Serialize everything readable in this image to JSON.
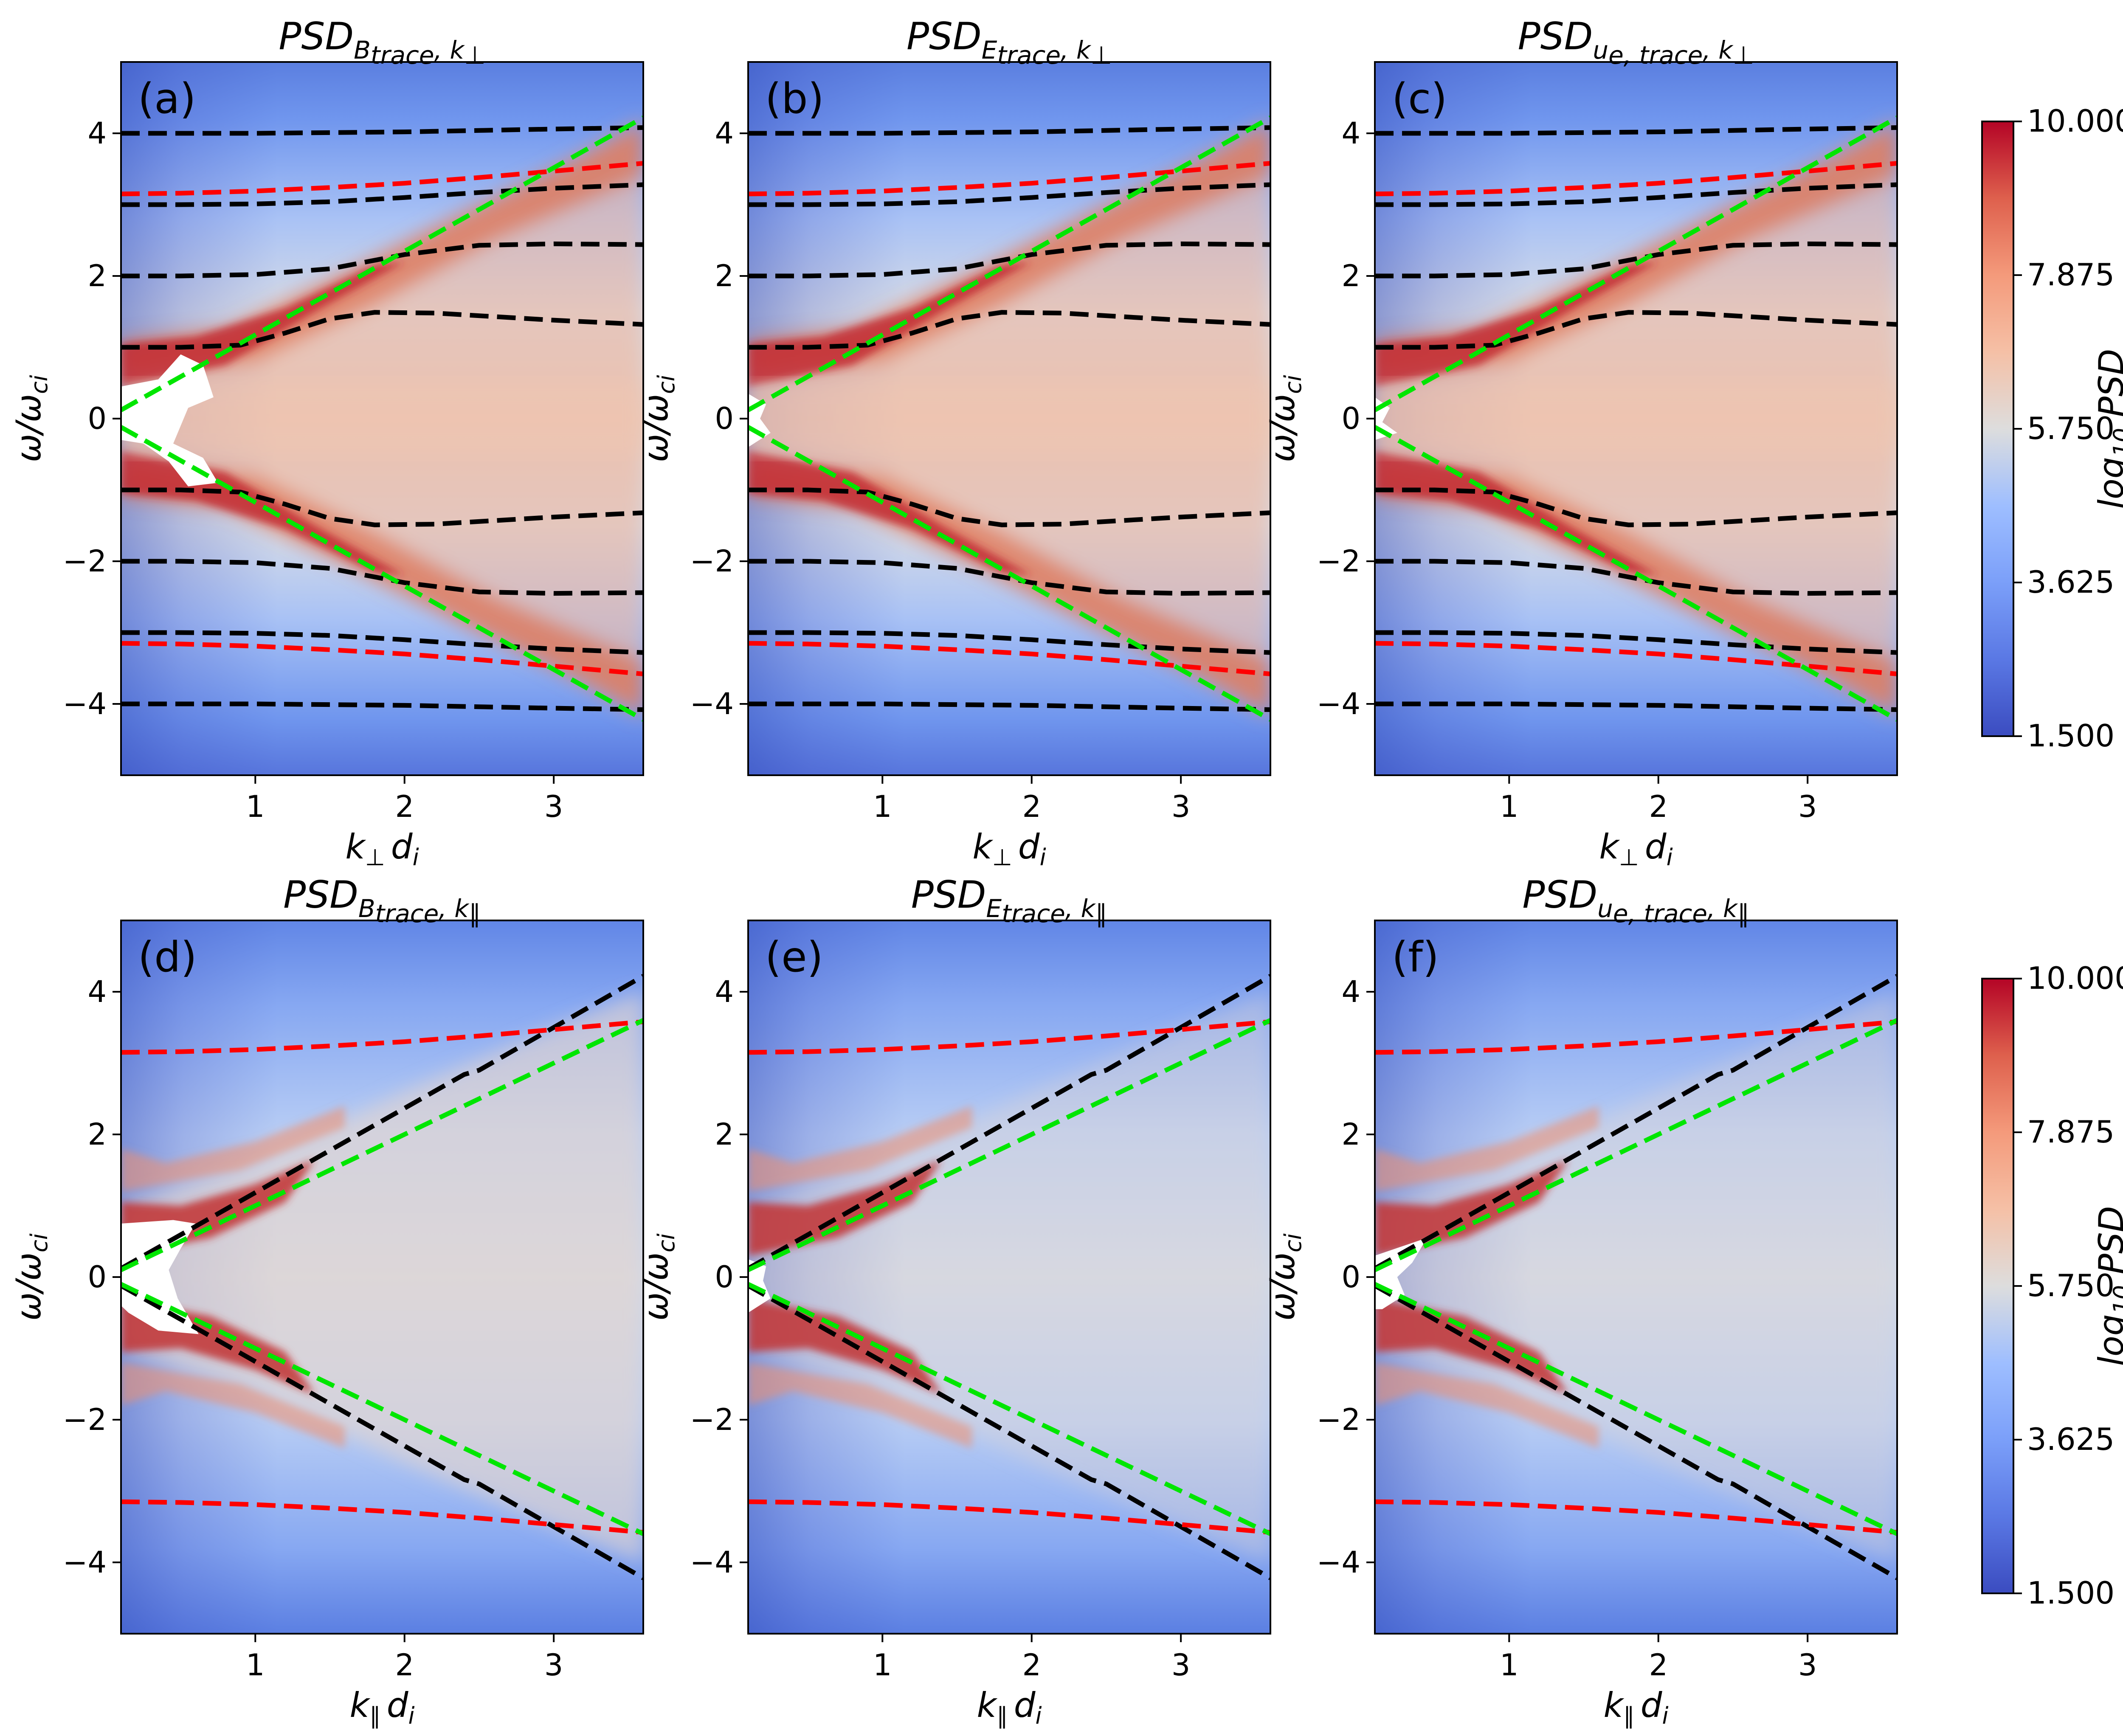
{
  "chart_data": [
    {
      "type": "heatmap",
      "panel": "(a)",
      "title": {
        "main": "PSD",
        "sub": "B",
        "sub2": "trace",
        "sub3": ", k",
        "sub4": "⊥"
      },
      "xlabel": {
        "main": "k",
        "sub": "⊥",
        "tail": "d",
        "tail_sub": "i"
      },
      "ylabel": {
        "main": "ω/ω",
        "sub": "ci"
      },
      "xlim": [
        0.1,
        3.6
      ],
      "ylim": [
        -5,
        5
      ],
      "xticks": [
        1,
        2,
        3
      ],
      "yticks": [
        -4,
        -2,
        0,
        2,
        4
      ],
      "yticklabels": [
        "−4",
        "−2",
        "0",
        "2",
        "4"
      ],
      "colormap": "coolwarm",
      "overlays": "perp",
      "hole": "a"
    },
    {
      "type": "heatmap",
      "panel": "(b)",
      "title": {
        "main": "PSD",
        "sub": "E",
        "sub2": "trace",
        "sub3": ", k",
        "sub4": "⊥"
      },
      "xlabel": {
        "main": "k",
        "sub": "⊥",
        "tail": "d",
        "tail_sub": "i"
      },
      "ylabel": {
        "main": "ω/ω",
        "sub": "ci"
      },
      "xlim": [
        0.1,
        3.6
      ],
      "ylim": [
        -5,
        5
      ],
      "xticks": [
        1,
        2,
        3
      ],
      "yticks": [
        -4,
        -2,
        0,
        2,
        4
      ],
      "yticklabels": [
        "−4",
        "−2",
        "0",
        "2",
        "4"
      ],
      "colormap": "coolwarm",
      "overlays": "perp",
      "hole": "b"
    },
    {
      "type": "heatmap",
      "panel": "(c)",
      "title": {
        "main": "PSD",
        "sub": "u",
        "sub2": "e, trace",
        "sub3": ", k",
        "sub4": "⊥"
      },
      "xlabel": {
        "main": "k",
        "sub": "⊥",
        "tail": "d",
        "tail_sub": "i"
      },
      "ylabel": {
        "main": "ω/ω",
        "sub": "ci"
      },
      "xlim": [
        0.1,
        3.6
      ],
      "ylim": [
        -5,
        5
      ],
      "xticks": [
        1,
        2,
        3
      ],
      "yticks": [
        -4,
        -2,
        0,
        2,
        4
      ],
      "yticklabels": [
        "−4",
        "−2",
        "0",
        "2",
        "4"
      ],
      "colormap": "coolwarm",
      "overlays": "perp",
      "hole": "c"
    },
    {
      "type": "heatmap",
      "panel": "(d)",
      "title": {
        "main": "PSD",
        "sub": "B",
        "sub2": "trace",
        "sub3": ", k",
        "sub4": "∥"
      },
      "xlabel": {
        "main": "k",
        "sub": "∥",
        "tail": "d",
        "tail_sub": "i"
      },
      "ylabel": {
        "main": "ω/ω",
        "sub": "ci"
      },
      "xlim": [
        0.1,
        3.6
      ],
      "ylim": [
        -5,
        5
      ],
      "xticks": [
        1,
        2,
        3
      ],
      "yticks": [
        -4,
        -2,
        0,
        2,
        4
      ],
      "yticklabels": [
        "−4",
        "−2",
        "0",
        "2",
        "4"
      ],
      "colormap": "coolwarm",
      "overlays": "par",
      "hole": "d"
    },
    {
      "type": "heatmap",
      "panel": "(e)",
      "title": {
        "main": "PSD",
        "sub": "E",
        "sub2": "trace",
        "sub3": ", k",
        "sub4": "∥"
      },
      "xlabel": {
        "main": "k",
        "sub": "∥",
        "tail": "d",
        "tail_sub": "i"
      },
      "ylabel": {
        "main": "ω/ω",
        "sub": "ci"
      },
      "xlim": [
        0.1,
        3.6
      ],
      "ylim": [
        -5,
        5
      ],
      "xticks": [
        1,
        2,
        3
      ],
      "yticks": [
        -4,
        -2,
        0,
        2,
        4
      ],
      "yticklabels": [
        "−4",
        "−2",
        "0",
        "2",
        "4"
      ],
      "colormap": "coolwarm",
      "overlays": "par",
      "hole": "e"
    },
    {
      "type": "heatmap",
      "panel": "(f)",
      "title": {
        "main": "PSD",
        "sub": "u",
        "sub2": "e, trace",
        "sub3": ", k",
        "sub4": "∥"
      },
      "xlabel": {
        "main": "k",
        "sub": "∥",
        "tail": "d",
        "tail_sub": "i"
      },
      "ylabel": {
        "main": "ω/ω",
        "sub": "ci"
      },
      "xlim": [
        0.1,
        3.6
      ],
      "ylim": [
        -5,
        5
      ],
      "xticks": [
        1,
        2,
        3
      ],
      "yticks": [
        -4,
        -2,
        0,
        2,
        4
      ],
      "yticklabels": [
        "−4",
        "−2",
        "0",
        "2",
        "4"
      ],
      "colormap": "coolwarm",
      "overlays": "par",
      "hole": "f"
    }
  ],
  "colorbar": {
    "label": {
      "main": "log",
      "sub": "10",
      "tail": " PSD"
    },
    "ticks": [
      "10.000",
      "7.875",
      "5.750",
      "3.625",
      "1.500"
    ],
    "range": [
      1.5,
      10.0
    ]
  },
  "overlay_curves": {
    "perp": {
      "black": [
        {
          "x": [
            0.1,
            0.5,
            1.0,
            1.5,
            2.0,
            2.5,
            3.0,
            3.6
          ],
          "y": [
            4.0,
            4.0,
            4.0,
            4.01,
            4.02,
            4.04,
            4.06,
            4.08
          ]
        },
        {
          "x": [
            0.1,
            0.5,
            1.0,
            1.5,
            2.0,
            2.5,
            3.0,
            3.6
          ],
          "y": [
            3.0,
            3.0,
            3.01,
            3.04,
            3.1,
            3.17,
            3.23,
            3.28
          ]
        },
        {
          "x": [
            0.1,
            0.5,
            1.0,
            1.5,
            2.0,
            2.5,
            3.0,
            3.6
          ],
          "y": [
            2.0,
            2.0,
            2.02,
            2.1,
            2.3,
            2.43,
            2.45,
            2.44
          ]
        },
        {
          "x": [
            0.1,
            0.5,
            0.9,
            1.2,
            1.5,
            1.8,
            2.2,
            2.6,
            3.0,
            3.6
          ],
          "y": [
            1.0,
            1.0,
            1.03,
            1.2,
            1.4,
            1.49,
            1.48,
            1.43,
            1.38,
            1.32
          ]
        },
        {
          "x": [
            0.1,
            0.5,
            0.9,
            1.2,
            1.5,
            1.8,
            2.2,
            2.6,
            3.0,
            3.6
          ],
          "y": [
            -1.0,
            -1.0,
            -1.03,
            -1.2,
            -1.4,
            -1.49,
            -1.48,
            -1.43,
            -1.38,
            -1.32
          ]
        },
        {
          "x": [
            0.1,
            0.5,
            1.0,
            1.5,
            2.0,
            2.5,
            3.0,
            3.6
          ],
          "y": [
            -2.0,
            -2.0,
            -2.02,
            -2.1,
            -2.3,
            -2.43,
            -2.45,
            -2.44
          ]
        },
        {
          "x": [
            0.1,
            0.5,
            1.0,
            1.5,
            2.0,
            2.5,
            3.0,
            3.6
          ],
          "y": [
            -3.0,
            -3.0,
            -3.01,
            -3.04,
            -3.1,
            -3.17,
            -3.23,
            -3.28
          ]
        },
        {
          "x": [
            0.1,
            0.5,
            1.0,
            1.5,
            2.0,
            2.5,
            3.0,
            3.6
          ],
          "y": [
            -4.0,
            -4.0,
            -4.0,
            -4.01,
            -4.02,
            -4.04,
            -4.06,
            -4.08
          ]
        }
      ],
      "red": [
        {
          "x": [
            0.1,
            0.5,
            1.0,
            1.5,
            2.0,
            2.5,
            3.0,
            3.6
          ],
          "y": [
            3.15,
            3.16,
            3.19,
            3.24,
            3.3,
            3.38,
            3.47,
            3.58
          ]
        },
        {
          "x": [
            0.1,
            0.5,
            1.0,
            1.5,
            2.0,
            2.5,
            3.0,
            3.6
          ],
          "y": [
            -3.15,
            -3.16,
            -3.19,
            -3.24,
            -3.3,
            -3.38,
            -3.47,
            -3.58
          ]
        }
      ],
      "green": [
        {
          "x": [
            0.1,
            3.6
          ],
          "y": [
            0.12,
            4.22
          ]
        },
        {
          "x": [
            0.1,
            3.6
          ],
          "y": [
            -0.12,
            -4.22
          ]
        }
      ]
    },
    "par": {
      "black": [
        {
          "x": [
            0.1,
            2.4,
            2.5,
            3.6
          ],
          "y": [
            0.12,
            2.84,
            2.9,
            4.22
          ]
        },
        {
          "x": [
            0.1,
            2.4,
            2.5,
            3.6
          ],
          "y": [
            -0.12,
            -2.84,
            -2.9,
            -4.22
          ]
        }
      ],
      "red": [
        {
          "x": [
            0.1,
            0.5,
            1.0,
            1.5,
            2.0,
            2.5,
            3.0,
            3.6
          ],
          "y": [
            3.15,
            3.16,
            3.19,
            3.24,
            3.3,
            3.38,
            3.47,
            3.58
          ]
        },
        {
          "x": [
            0.1,
            0.5,
            1.0,
            1.5,
            2.0,
            2.5,
            3.0,
            3.6
          ],
          "y": [
            -3.15,
            -3.16,
            -3.19,
            -3.24,
            -3.3,
            -3.38,
            -3.47,
            -3.58
          ]
        }
      ],
      "green": [
        {
          "x": [
            0.1,
            3.6
          ],
          "y": [
            0.1,
            3.6
          ]
        },
        {
          "x": [
            0.1,
            3.6
          ],
          "y": [
            -0.1,
            -3.6
          ]
        }
      ]
    }
  },
  "colors": {
    "black_curve": "#000000",
    "red_curve": "#ff0000",
    "green_curve": "#00e600",
    "cmap_low": "#3b4cc0",
    "cmap_mid": "#dddddd",
    "cmap_high": "#b40426"
  }
}
